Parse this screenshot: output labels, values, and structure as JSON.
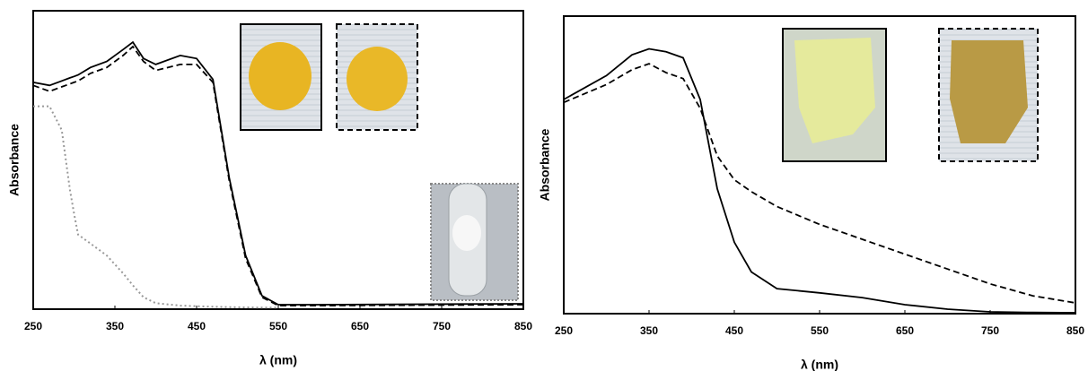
{
  "chart_data": [
    {
      "type": "line",
      "x_label": "λ (nm)",
      "y_label": "Absorbance",
      "xlim": [
        250,
        850
      ],
      "ylim": [
        0,
        1
      ],
      "xticks": [
        250,
        350,
        450,
        550,
        650,
        750,
        850
      ],
      "x": [
        250,
        270,
        285,
        295,
        300,
        305,
        320,
        340,
        360,
        372,
        385,
        400,
        430,
        450,
        470,
        490,
        510,
        530,
        550,
        600,
        850
      ],
      "series": [
        {
          "color": "#000000",
          "line_style": "solid",
          "values": [
            0.76,
            0.75,
            0.765,
            0.775,
            0.78,
            0.785,
            0.81,
            0.83,
            0.87,
            0.895,
            0.84,
            0.82,
            0.85,
            0.84,
            0.77,
            0.44,
            0.18,
            0.045,
            0.015,
            0.015,
            0.018
          ]
        },
        {
          "color": "#000000",
          "line_style": "dashed",
          "values": [
            0.75,
            0.73,
            0.745,
            0.755,
            0.76,
            0.765,
            0.79,
            0.81,
            0.85,
            0.88,
            0.83,
            0.8,
            0.82,
            0.82,
            0.76,
            0.43,
            0.17,
            0.04,
            0.012,
            0.012,
            0.015
          ]
        },
        {
          "color": "#999999",
          "line_style": "dotted",
          "values": [
            0.68,
            0.68,
            0.6,
            0.4,
            0.32,
            0.25,
            0.22,
            0.18,
            0.12,
            0.08,
            0.04,
            0.02,
            0.012,
            0.01,
            0.008,
            0.007,
            0.006,
            0.005,
            0.005,
            null,
            null
          ]
        }
      ]
    },
    {
      "type": "line",
      "x_label": "λ (nm)",
      "y_label": "Absorbance",
      "xlim": [
        250,
        850
      ],
      "ylim": [
        0,
        1
      ],
      "xticks": [
        250,
        350,
        450,
        550,
        650,
        750,
        850
      ],
      "x": [
        250,
        300,
        330,
        350,
        370,
        390,
        410,
        430,
        450,
        470,
        500,
        550,
        600,
        650,
        700,
        750,
        800,
        850
      ],
      "series": [
        {
          "color": "#000000",
          "line_style": "solid",
          "values": [
            0.72,
            0.8,
            0.87,
            0.89,
            0.88,
            0.86,
            0.72,
            0.42,
            0.24,
            0.14,
            0.084,
            0.07,
            0.054,
            0.03,
            0.015,
            0.006,
            0.004,
            0.003
          ]
        },
        {
          "color": "#000000",
          "line_style": "dashed",
          "values": [
            0.71,
            0.77,
            0.82,
            0.84,
            0.81,
            0.79,
            0.69,
            0.53,
            0.45,
            0.41,
            0.36,
            0.3,
            0.25,
            0.2,
            0.15,
            0.1,
            0.06,
            0.036
          ]
        }
      ]
    }
  ]
}
